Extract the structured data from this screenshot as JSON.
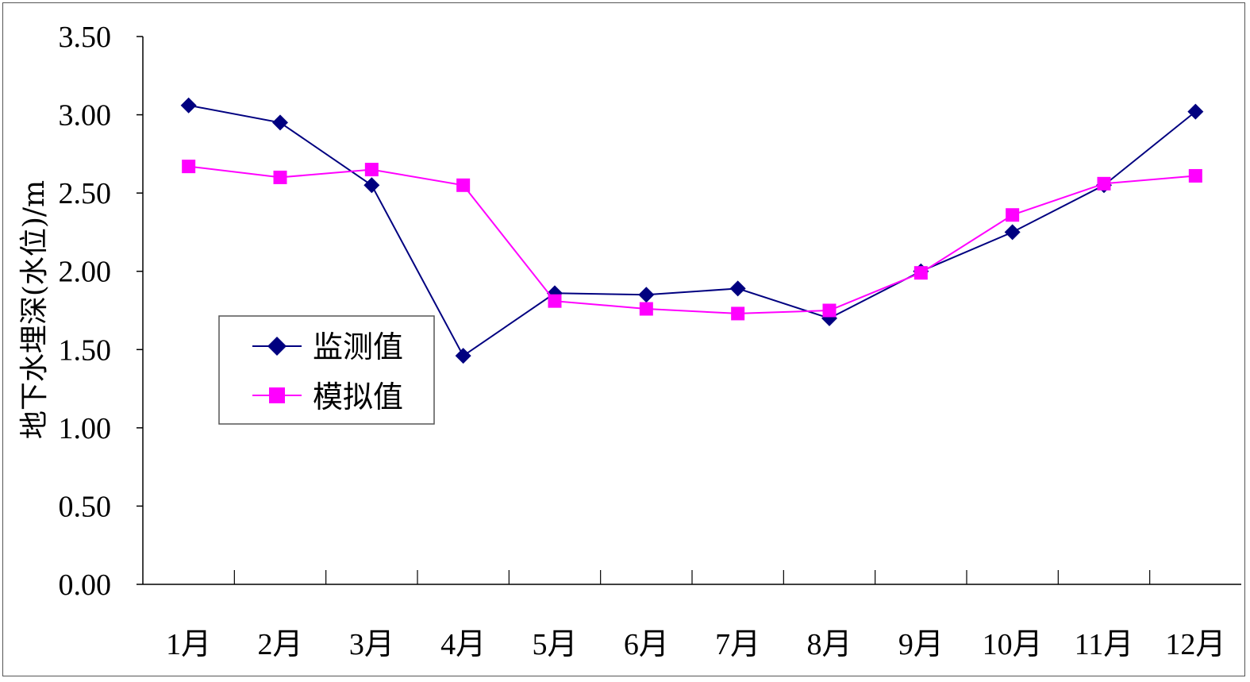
{
  "chart_data": {
    "type": "line",
    "title": "",
    "xlabel": "",
    "ylabel": "地下水埋深(水位)/m",
    "categories": [
      "1月",
      "2月",
      "3月",
      "4月",
      "5月",
      "6月",
      "7月",
      "8月",
      "9月",
      "10月",
      "11月",
      "12月"
    ],
    "y_ticks": [
      "0.00",
      "0.50",
      "1.00",
      "1.50",
      "2.00",
      "2.50",
      "3.00",
      "3.50"
    ],
    "ylim": [
      0,
      3.5
    ],
    "grid": false,
    "legend_position": "left-middle",
    "series": [
      {
        "name": "监测值",
        "color": "#000080",
        "marker": "diamond",
        "values": [
          3.06,
          2.95,
          2.55,
          1.46,
          1.86,
          1.85,
          1.89,
          1.7,
          2.0,
          2.25,
          2.55,
          3.02
        ]
      },
      {
        "name": "模拟值",
        "color": "#FF00FF",
        "marker": "square",
        "values": [
          2.67,
          2.6,
          2.65,
          2.55,
          1.81,
          1.76,
          1.73,
          1.75,
          1.99,
          2.36,
          2.56,
          2.61
        ]
      }
    ]
  }
}
